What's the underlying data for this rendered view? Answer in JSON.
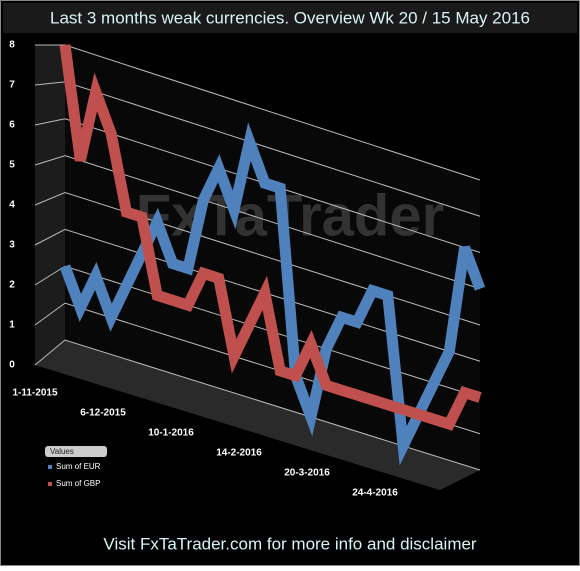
{
  "chart_data": {
    "type": "line",
    "title": "Last 3 months weak currencies. Overview Wk 20 / 15 May 2016",
    "footer": "Visit FxTaTrader.com for more info and disclaimer",
    "watermark": "FxTaTrader",
    "legend_title": "Values",
    "categories": [
      "1-11-2015",
      null,
      null,
      null,
      null,
      "6-12-2015",
      null,
      null,
      null,
      null,
      "10-1-2016",
      null,
      null,
      null,
      null,
      "14-2-2016",
      null,
      null,
      null,
      null,
      "20-3-2016",
      null,
      null,
      null,
      null,
      "24-4-2016",
      null,
      null
    ],
    "series": [
      {
        "name": "Sum of EUR",
        "color": "#4f81bd",
        "values": [
          2,
          1,
          2,
          1,
          2,
          3,
          4,
          3,
          3,
          5,
          6,
          5,
          7,
          6,
          6,
          1,
          0,
          2,
          3,
          3,
          4,
          4,
          0,
          1,
          2,
          3,
          6,
          5
        ]
      },
      {
        "name": "Sum of GBP",
        "color": "#c0504d",
        "values": [
          8,
          5,
          7,
          6,
          4,
          4,
          2,
          2,
          2,
          3,
          3,
          1,
          2,
          3,
          1,
          1,
          2,
          1,
          1,
          1,
          1,
          1,
          1,
          1,
          1,
          1,
          2,
          2
        ]
      }
    ],
    "ylim": [
      0,
      8
    ],
    "yticks": [
      0,
      1,
      2,
      3,
      4,
      5,
      6,
      7,
      8
    ],
    "grid": true
  }
}
